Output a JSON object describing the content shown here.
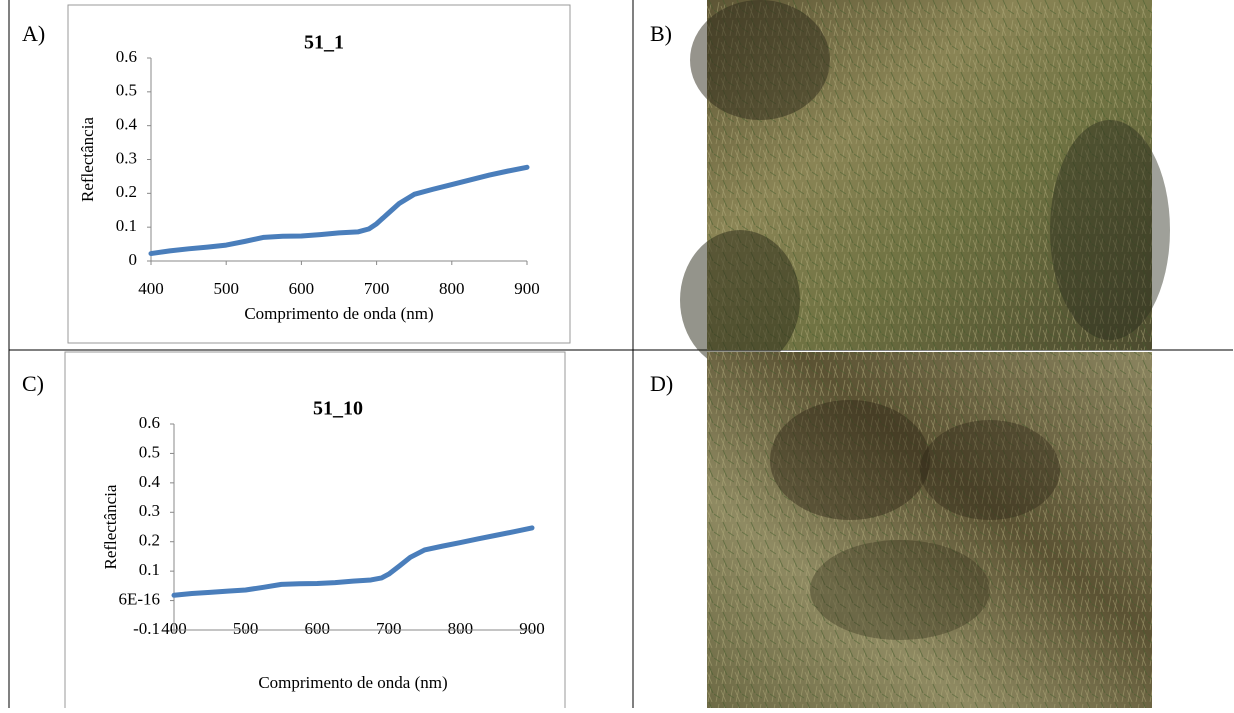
{
  "panel_labels": [
    "A)",
    "B)",
    "C)",
    "D)"
  ],
  "chart_data": [
    {
      "type": "line",
      "title": "51_1",
      "x_label": "Comprimento de onda (nm)",
      "y_label": "Reflectância",
      "x": [
        400,
        425,
        450,
        475,
        500,
        525,
        550,
        575,
        600,
        625,
        650,
        675,
        690,
        700,
        715,
        730,
        750,
        775,
        800,
        825,
        850,
        875,
        900
      ],
      "values": [
        0.022,
        0.03,
        0.036,
        0.041,
        0.047,
        0.058,
        0.07,
        0.073,
        0.074,
        0.078,
        0.083,
        0.086,
        0.095,
        0.11,
        0.14,
        0.17,
        0.197,
        0.212,
        0.226,
        0.24,
        0.254,
        0.266,
        0.277
      ],
      "color": "#4a7ebb",
      "xlim": [
        400,
        900
      ],
      "xticks": [
        400,
        500,
        600,
        700,
        800,
        900
      ],
      "ylim": [
        0,
        0.6
      ],
      "yticks": [
        0,
        0.1,
        0.2,
        0.3,
        0.4,
        0.5,
        0.6
      ]
    },
    {
      "type": "line",
      "title": "51_10",
      "x_label": "Comprimento de onda (nm)",
      "y_label": "Reflectância",
      "x": [
        400,
        425,
        450,
        475,
        500,
        525,
        550,
        575,
        600,
        625,
        650,
        675,
        690,
        700,
        715,
        730,
        750,
        775,
        800,
        825,
        850,
        875,
        900
      ],
      "values": [
        0.018,
        0.024,
        0.028,
        0.032,
        0.036,
        0.045,
        0.055,
        0.057,
        0.058,
        0.061,
        0.066,
        0.07,
        0.077,
        0.09,
        0.118,
        0.147,
        0.172,
        0.185,
        0.197,
        0.21,
        0.222,
        0.234,
        0.247
      ],
      "color": "#4a7ebb",
      "xlim": [
        400,
        900
      ],
      "xticks": [
        400,
        500,
        600,
        700,
        800,
        900
      ],
      "ylim": [
        -0.1,
        0.6
      ],
      "yticks": [
        -0.1,
        {
          "value": 6e-16,
          "label": "6E-16"
        },
        0.1,
        0.2,
        0.3,
        0.4,
        0.5,
        0.6
      ]
    }
  ]
}
